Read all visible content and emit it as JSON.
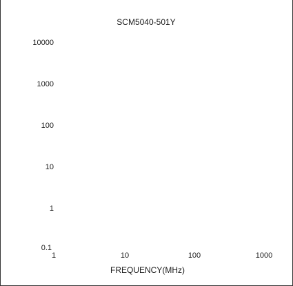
{
  "chart_data": {
    "type": "line",
    "title": "SCM5040-501Y",
    "xlabel": "FREQUENCY(MHz)",
    "ylabel": "",
    "x_scale": "log",
    "y_scale": "log",
    "xlim": [
      1,
      1000
    ],
    "ylim": [
      0.1,
      10000
    ],
    "x_ticks": [
      "1",
      "10",
      "100",
      "1000"
    ],
    "y_ticks": [
      "0.1",
      "1",
      "10",
      "100",
      "1000",
      "10000"
    ],
    "grid": false,
    "legend": "none",
    "series": []
  }
}
